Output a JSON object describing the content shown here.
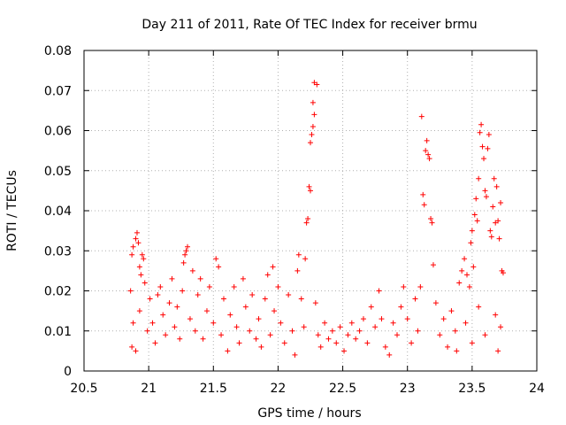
{
  "chart_data": {
    "type": "scatter",
    "title": "Day 211 of 2011, Rate Of TEC Index for receiver brmu",
    "xlabel": "GPS time / hours",
    "ylabel": "ROTI / TECUs",
    "xlim": [
      20.5,
      24
    ],
    "ylim": [
      0,
      0.08
    ],
    "x_ticks": [
      "20.5",
      "21",
      "21.5",
      "22",
      "22.5",
      "23",
      "23.5",
      "24"
    ],
    "y_ticks": [
      "0",
      "0.01",
      "0.02",
      "0.03",
      "0.04",
      "0.05",
      "0.06",
      "0.07",
      "0.08"
    ],
    "grid": true,
    "marker": "+",
    "color": "#ff0000",
    "series": [
      {
        "name": "ROTI",
        "points": [
          [
            20.87,
            0.029
          ],
          [
            20.88,
            0.031
          ],
          [
            20.9,
            0.033
          ],
          [
            20.91,
            0.0345
          ],
          [
            20.92,
            0.032
          ],
          [
            20.93,
            0.026
          ],
          [
            20.94,
            0.024
          ],
          [
            20.95,
            0.029
          ],
          [
            20.96,
            0.028
          ],
          [
            20.97,
            0.022
          ],
          [
            20.86,
            0.02
          ],
          [
            20.87,
            0.006
          ],
          [
            20.88,
            0.012
          ],
          [
            20.9,
            0.005
          ],
          [
            20.93,
            0.015
          ],
          [
            20.99,
            0.01
          ],
          [
            21.01,
            0.018
          ],
          [
            21.03,
            0.012
          ],
          [
            21.05,
            0.007
          ],
          [
            21.07,
            0.019
          ],
          [
            21.09,
            0.021
          ],
          [
            21.11,
            0.014
          ],
          [
            21.13,
            0.009
          ],
          [
            21.16,
            0.017
          ],
          [
            21.18,
            0.023
          ],
          [
            21.2,
            0.011
          ],
          [
            21.22,
            0.016
          ],
          [
            21.24,
            0.008
          ],
          [
            21.26,
            0.02
          ],
          [
            21.27,
            0.027
          ],
          [
            21.28,
            0.029
          ],
          [
            21.29,
            0.03
          ],
          [
            21.3,
            0.031
          ],
          [
            21.32,
            0.013
          ],
          [
            21.34,
            0.025
          ],
          [
            21.36,
            0.01
          ],
          [
            21.38,
            0.019
          ],
          [
            21.4,
            0.023
          ],
          [
            21.42,
            0.008
          ],
          [
            21.45,
            0.015
          ],
          [
            21.47,
            0.021
          ],
          [
            21.5,
            0.012
          ],
          [
            21.52,
            0.028
          ],
          [
            21.54,
            0.026
          ],
          [
            21.56,
            0.009
          ],
          [
            21.58,
            0.018
          ],
          [
            21.61,
            0.005
          ],
          [
            21.63,
            0.014
          ],
          [
            21.66,
            0.021
          ],
          [
            21.68,
            0.011
          ],
          [
            21.7,
            0.007
          ],
          [
            21.73,
            0.023
          ],
          [
            21.75,
            0.016
          ],
          [
            21.78,
            0.01
          ],
          [
            21.8,
            0.019
          ],
          [
            21.83,
            0.008
          ],
          [
            21.85,
            0.013
          ],
          [
            21.87,
            0.006
          ],
          [
            21.9,
            0.018
          ],
          [
            21.92,
            0.024
          ],
          [
            21.94,
            0.009
          ],
          [
            21.96,
            0.026
          ],
          [
            21.97,
            0.015
          ],
          [
            22.0,
            0.021
          ],
          [
            22.02,
            0.012
          ],
          [
            22.05,
            0.007
          ],
          [
            22.08,
            0.019
          ],
          [
            22.11,
            0.01
          ],
          [
            22.13,
            0.004
          ],
          [
            22.15,
            0.025
          ],
          [
            22.16,
            0.029
          ],
          [
            22.18,
            0.018
          ],
          [
            22.2,
            0.011
          ],
          [
            22.21,
            0.028
          ],
          [
            22.22,
            0.037
          ],
          [
            22.23,
            0.038
          ],
          [
            22.24,
            0.046
          ],
          [
            22.25,
            0.045
          ],
          [
            22.25,
            0.057
          ],
          [
            22.26,
            0.059
          ],
          [
            22.27,
            0.061
          ],
          [
            22.27,
            0.067
          ],
          [
            22.28,
            0.064
          ],
          [
            22.28,
            0.072
          ],
          [
            22.3,
            0.0715
          ],
          [
            22.29,
            0.017
          ],
          [
            22.31,
            0.009
          ],
          [
            22.33,
            0.006
          ],
          [
            22.36,
            0.012
          ],
          [
            22.39,
            0.008
          ],
          [
            22.42,
            0.01
          ],
          [
            22.45,
            0.007
          ],
          [
            22.48,
            0.011
          ],
          [
            22.51,
            0.005
          ],
          [
            22.54,
            0.009
          ],
          [
            22.57,
            0.012
          ],
          [
            22.6,
            0.008
          ],
          [
            22.63,
            0.01
          ],
          [
            22.66,
            0.013
          ],
          [
            22.69,
            0.007
          ],
          [
            22.72,
            0.016
          ],
          [
            22.75,
            0.011
          ],
          [
            22.78,
            0.02
          ],
          [
            22.8,
            0.013
          ],
          [
            22.83,
            0.006
          ],
          [
            22.86,
            0.004
          ],
          [
            22.89,
            0.012
          ],
          [
            22.92,
            0.009
          ],
          [
            22.95,
            0.016
          ],
          [
            22.97,
            0.021
          ],
          [
            23.0,
            0.013
          ],
          [
            23.03,
            0.007
          ],
          [
            23.06,
            0.018
          ],
          [
            23.08,
            0.01
          ],
          [
            23.1,
            0.021
          ],
          [
            23.11,
            0.0635
          ],
          [
            23.12,
            0.044
          ],
          [
            23.13,
            0.0415
          ],
          [
            23.14,
            0.055
          ],
          [
            23.15,
            0.0575
          ],
          [
            23.16,
            0.054
          ],
          [
            23.17,
            0.053
          ],
          [
            23.18,
            0.038
          ],
          [
            23.19,
            0.037
          ],
          [
            23.2,
            0.0265
          ],
          [
            23.22,
            0.017
          ],
          [
            23.25,
            0.009
          ],
          [
            23.28,
            0.013
          ],
          [
            23.31,
            0.006
          ],
          [
            23.34,
            0.015
          ],
          [
            23.37,
            0.01
          ],
          [
            23.4,
            0.022
          ],
          [
            23.42,
            0.025
          ],
          [
            23.44,
            0.028
          ],
          [
            23.46,
            0.024
          ],
          [
            23.48,
            0.021
          ],
          [
            23.49,
            0.032
          ],
          [
            23.5,
            0.035
          ],
          [
            23.51,
            0.026
          ],
          [
            23.52,
            0.039
          ],
          [
            23.53,
            0.043
          ],
          [
            23.54,
            0.0375
          ],
          [
            23.55,
            0.048
          ],
          [
            23.56,
            0.0595
          ],
          [
            23.57,
            0.0615
          ],
          [
            23.58,
            0.056
          ],
          [
            23.59,
            0.053
          ],
          [
            23.6,
            0.045
          ],
          [
            23.61,
            0.0435
          ],
          [
            23.62,
            0.0555
          ],
          [
            23.63,
            0.059
          ],
          [
            23.64,
            0.035
          ],
          [
            23.65,
            0.0335
          ],
          [
            23.66,
            0.041
          ],
          [
            23.67,
            0.048
          ],
          [
            23.68,
            0.037
          ],
          [
            23.69,
            0.046
          ],
          [
            23.7,
            0.0375
          ],
          [
            23.71,
            0.033
          ],
          [
            23.72,
            0.042
          ],
          [
            23.73,
            0.025
          ],
          [
            23.74,
            0.0245
          ],
          [
            23.68,
            0.014
          ],
          [
            23.7,
            0.005
          ],
          [
            23.72,
            0.011
          ],
          [
            23.6,
            0.009
          ],
          [
            23.55,
            0.016
          ],
          [
            23.5,
            0.007
          ],
          [
            23.45,
            0.012
          ],
          [
            23.38,
            0.005
          ]
        ]
      }
    ]
  }
}
